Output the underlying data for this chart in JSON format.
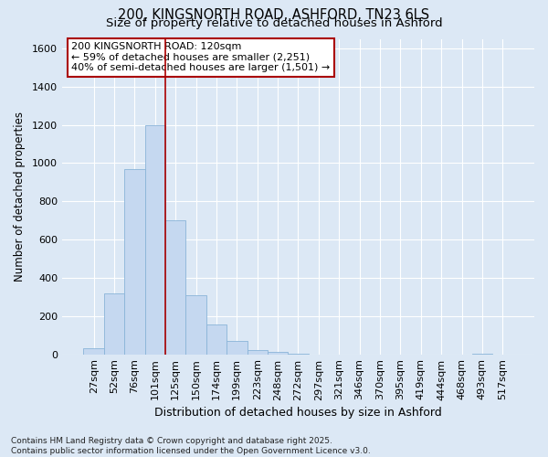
{
  "title1": "200, KINGSNORTH ROAD, ASHFORD, TN23 6LS",
  "title2": "Size of property relative to detached houses in Ashford",
  "xlabel": "Distribution of detached houses by size in Ashford",
  "ylabel": "Number of detached properties",
  "categories": [
    "27sqm",
    "52sqm",
    "76sqm",
    "101sqm",
    "125sqm",
    "150sqm",
    "174sqm",
    "199sqm",
    "223sqm",
    "248sqm",
    "272sqm",
    "297sqm",
    "321sqm",
    "346sqm",
    "370sqm",
    "395sqm",
    "419sqm",
    "444sqm",
    "468sqm",
    "493sqm",
    "517sqm"
  ],
  "values": [
    30,
    320,
    970,
    1200,
    700,
    310,
    155,
    70,
    20,
    10,
    3,
    0,
    0,
    0,
    0,
    0,
    0,
    0,
    0,
    5,
    0
  ],
  "bar_color": "#c5d8f0",
  "bar_edge_color": "#8ab4d8",
  "vline_color": "#aa0000",
  "vline_x": 3.5,
  "annotation_text": "200 KINGSNORTH ROAD: 120sqm\n← 59% of detached houses are smaller (2,251)\n40% of semi-detached houses are larger (1,501) →",
  "annotation_box_facecolor": "#ffffff",
  "annotation_box_edgecolor": "#aa0000",
  "ylim": [
    0,
    1650
  ],
  "yticks": [
    0,
    200,
    400,
    600,
    800,
    1000,
    1200,
    1400,
    1600
  ],
  "background_color": "#dce8f5",
  "plot_background": "#dce8f5",
  "grid_color": "#ffffff",
  "footer": "Contains HM Land Registry data © Crown copyright and database right 2025.\nContains public sector information licensed under the Open Government Licence v3.0.",
  "title1_fontsize": 10.5,
  "title2_fontsize": 9.5,
  "xlabel_fontsize": 9,
  "ylabel_fontsize": 8.5,
  "tick_fontsize": 8,
  "annotation_fontsize": 8,
  "footer_fontsize": 6.5
}
